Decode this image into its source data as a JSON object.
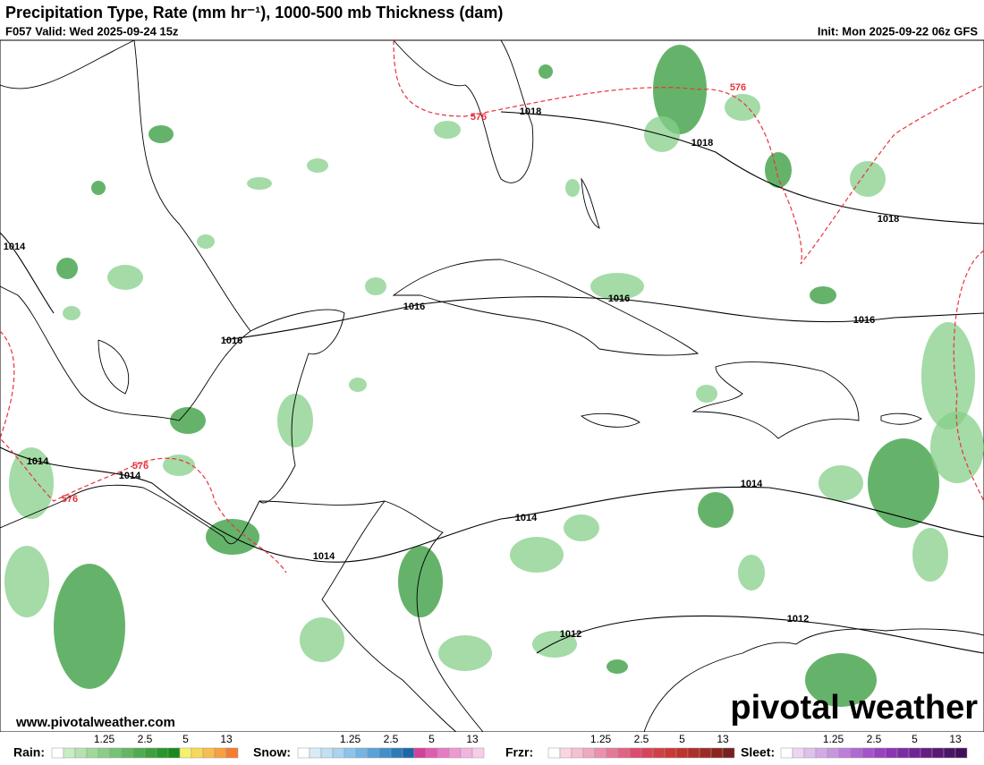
{
  "header": {
    "title": "Precipitation Type, Rate (mm hr⁻¹), 1000-500 mb Thickness (dam)",
    "valid": "F057 Valid: Wed 2025-09-24 15z",
    "init": "Init: Mon 2025-09-22 06z GFS"
  },
  "contour_labels": [
    "576",
    "1018",
    "1018",
    "576",
    "1018",
    "1014",
    "1016",
    "1016",
    "1016",
    "1016",
    "1014",
    "576",
    "1014",
    "576",
    "1014",
    "1014",
    "1014",
    "1012",
    "1012"
  ],
  "watermark": "pivotal weather",
  "url": "www.pivotalweather.com",
  "legends": [
    {
      "label": "Rain:",
      "ticks": [
        "1.25",
        "2.5",
        "5",
        "13"
      ],
      "colors": [
        "#ffffff",
        "#c8ecc6",
        "#b4e2b1",
        "#a0d89c",
        "#8ccd88",
        "#78c275",
        "#64b761",
        "#50ac4f",
        "#3ca13d",
        "#28962b",
        "#178a1b",
        "#f5f26a",
        "#f7d85a",
        "#f8bd4c",
        "#f99f3f",
        "#f67c2f"
      ]
    },
    {
      "label": "Snow:",
      "ticks": [
        "1.25",
        "2.5",
        "5",
        "13"
      ],
      "colors": [
        "#ffffff",
        "#d8ecf8",
        "#c2e0f4",
        "#a9d3f0",
        "#8ec4ea",
        "#74b4e2",
        "#5aa3d8",
        "#4190cb",
        "#2b7cbb",
        "#1b67a8",
        "#d43f9c",
        "#df5db0",
        "#e77bc2",
        "#ee99d2",
        "#f3b4e0",
        "#f7cdea"
      ]
    },
    {
      "label": "Frzr:",
      "ticks": [
        "1.25",
        "2.5",
        "5",
        "13"
      ],
      "colors": [
        "#ffffff",
        "#f9d6e2",
        "#f5c0d2",
        "#f0a9c0",
        "#ec91ad",
        "#e77998",
        "#e26283",
        "#dc4c6e",
        "#d8455a",
        "#d24046",
        "#c93a36",
        "#bd342c",
        "#ad2f28",
        "#9c2a25",
        "#8a2522",
        "#77201f"
      ]
    },
    {
      "label": "Sleet:",
      "ticks": [
        "1.25",
        "2.5",
        "5",
        "13"
      ],
      "colors": [
        "#ffffff",
        "#ecd6f2",
        "#e0c0ec",
        "#d4aae6",
        "#c894e0",
        "#bc7ed9",
        "#b068d2",
        "#a454ca",
        "#9842c0",
        "#8b34b4",
        "#7d2ba3",
        "#702393",
        "#641d83",
        "#581874",
        "#4c1466",
        "#401058"
      ]
    }
  ]
}
